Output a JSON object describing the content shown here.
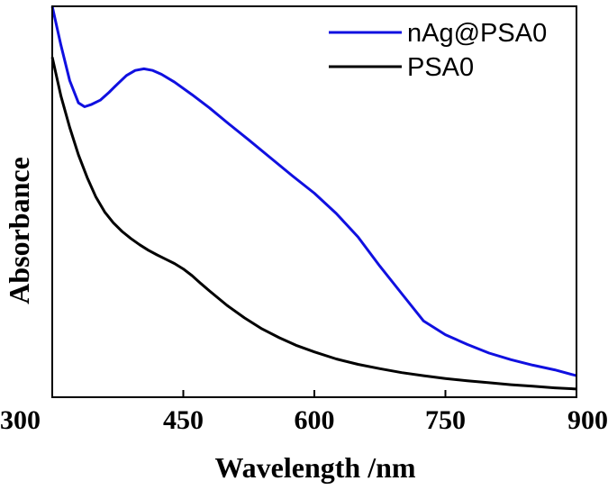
{
  "chart_data": {
    "type": "line",
    "title": "",
    "xlabel": "Wavelength /nm",
    "ylabel": "Absorbance",
    "xlim": [
      300,
      900
    ],
    "ylim": [
      0,
      1
    ],
    "x_ticks": [
      300,
      450,
      600,
      750,
      900
    ],
    "y_ticks": [],
    "grid": false,
    "legend_position": "top-right",
    "series": [
      {
        "name": "nAg@PSA0",
        "color": "#1010e0",
        "x": [
          300,
          310,
          320,
          330,
          337,
          345,
          355,
          365,
          375,
          385,
          395,
          405,
          415,
          425,
          440,
          460,
          480,
          500,
          525,
          550,
          575,
          600,
          625,
          650,
          675,
          700,
          725,
          750,
          775,
          800,
          825,
          850,
          875,
          900
        ],
        "y": [
          1.02,
          0.9,
          0.81,
          0.753,
          0.743,
          0.749,
          0.76,
          0.78,
          0.802,
          0.823,
          0.836,
          0.84,
          0.836,
          0.826,
          0.806,
          0.774,
          0.74,
          0.703,
          0.658,
          0.612,
          0.566,
          0.522,
          0.47,
          0.41,
          0.335,
          0.265,
          0.195,
          0.16,
          0.135,
          0.113,
          0.096,
          0.082,
          0.07,
          0.055
        ]
      },
      {
        "name": "PSA0",
        "color": "#000000",
        "x": [
          300,
          310,
          320,
          330,
          340,
          350,
          360,
          370,
          380,
          390,
          400,
          410,
          420,
          430,
          440,
          450,
          460,
          470,
          480,
          500,
          520,
          540,
          560,
          580,
          600,
          625,
          650,
          675,
          700,
          725,
          750,
          775,
          800,
          825,
          850,
          875,
          900
        ],
        "y": [
          0.87,
          0.77,
          0.69,
          0.62,
          0.562,
          0.512,
          0.474,
          0.446,
          0.424,
          0.406,
          0.39,
          0.376,
          0.364,
          0.353,
          0.342,
          0.328,
          0.311,
          0.291,
          0.272,
          0.235,
          0.203,
          0.175,
          0.152,
          0.132,
          0.116,
          0.098,
          0.084,
          0.073,
          0.063,
          0.055,
          0.048,
          0.042,
          0.037,
          0.032,
          0.028,
          0.024,
          0.021
        ]
      }
    ]
  }
}
